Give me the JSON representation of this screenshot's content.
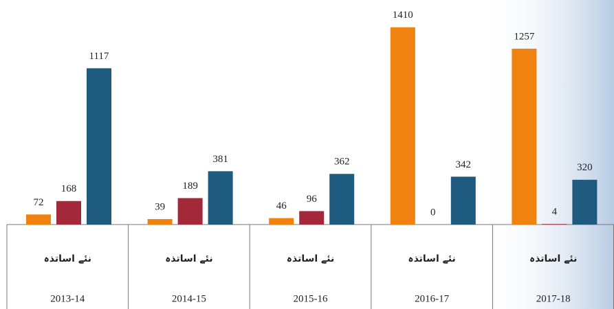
{
  "chart_data": {
    "type": "bar",
    "categories": [
      "2013-14",
      "2014-15",
      "2015-16",
      "2016-17",
      "2017-18"
    ],
    "subcategories": [
      "نئے اساتذہ",
      "نئے اساتذہ",
      "نئے اساتذہ",
      "نئے اساتذہ",
      "نئے اساتذہ"
    ],
    "series": [
      {
        "color": "#f0820f",
        "values": [
          72,
          39,
          46,
          1410,
          1257
        ]
      },
      {
        "color": "#a3293a",
        "values": [
          168,
          189,
          96,
          0,
          4
        ]
      },
      {
        "color": "#1f5b7e",
        "values": [
          1117,
          381,
          362,
          342,
          320
        ]
      }
    ],
    "ylim": [
      0,
      1600
    ]
  }
}
